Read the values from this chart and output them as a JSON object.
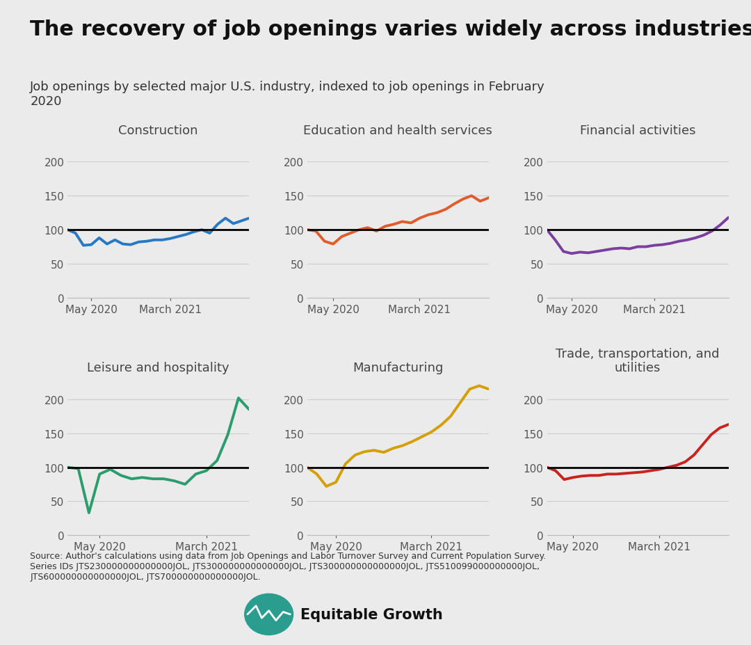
{
  "title": "The recovery of job openings varies widely across industries",
  "subtitle": "Job openings by selected major U.S. industry, indexed to job openings in February\n2020",
  "source": "Source: Author's calculations using data from Job Openings and Labor Turnover Survey and Current Population Survey.\nSeries IDs JTS230000000000000JOL, JTS300000000000000JOL, JTS300000000000000JOL, JTS510099000000000JOL,\nJTS600000000000000JOL, JTS700000000000000JOL.",
  "background_color": "#ebebeb",
  "panels": [
    {
      "title": "Construction",
      "color": "#2878c3",
      "ylim": [
        0,
        230
      ],
      "yticks": [
        0,
        50,
        100,
        150,
        200
      ],
      "data": [
        100,
        95,
        77,
        78,
        88,
        79,
        85,
        79,
        78,
        82,
        83,
        85,
        85,
        87,
        90,
        93,
        97,
        100,
        95,
        108,
        117,
        109,
        113,
        117
      ]
    },
    {
      "title": "Education and health services",
      "color": "#e05c2a",
      "ylim": [
        0,
        230
      ],
      "yticks": [
        0,
        50,
        100,
        150,
        200
      ],
      "data": [
        100,
        98,
        83,
        79,
        90,
        95,
        100,
        103,
        98,
        105,
        108,
        112,
        110,
        117,
        122,
        125,
        130,
        138,
        145,
        150,
        142,
        147
      ]
    },
    {
      "title": "Financial activities",
      "color": "#7b3fa0",
      "ylim": [
        0,
        230
      ],
      "yticks": [
        0,
        50,
        100,
        150,
        200
      ],
      "data": [
        100,
        85,
        68,
        65,
        67,
        66,
        68,
        70,
        72,
        73,
        72,
        75,
        75,
        77,
        78,
        80,
        83,
        85,
        88,
        92,
        98,
        107,
        118
      ]
    },
    {
      "title": "Leisure and hospitality",
      "color": "#2a9d6e",
      "ylim": [
        0,
        230
      ],
      "yticks": [
        0,
        50,
        100,
        150,
        200
      ],
      "data": [
        100,
        98,
        33,
        90,
        97,
        88,
        83,
        85,
        83,
        83,
        80,
        75,
        90,
        95,
        110,
        148,
        202,
        185
      ]
    },
    {
      "title": "Manufacturing",
      "color": "#d4a000",
      "ylim": [
        0,
        230
      ],
      "yticks": [
        0,
        50,
        100,
        150,
        200
      ],
      "data": [
        100,
        90,
        72,
        78,
        105,
        118,
        123,
        125,
        122,
        128,
        132,
        138,
        145,
        152,
        162,
        175,
        195,
        215,
        220,
        215
      ]
    },
    {
      "title": "Trade, transportation, and\nutilities",
      "color": "#c8231e",
      "ylim": [
        0,
        230
      ],
      "yticks": [
        0,
        50,
        100,
        150,
        200
      ],
      "data": [
        100,
        95,
        82,
        85,
        87,
        88,
        88,
        90,
        90,
        91,
        92,
        93,
        95,
        97,
        100,
        103,
        108,
        118,
        133,
        148,
        158,
        163
      ]
    }
  ],
  "xtick_labels": [
    "May 2020",
    "March 2021"
  ],
  "title_fontsize": 22,
  "subtitle_fontsize": 13,
  "panel_title_fontsize": 13,
  "tick_fontsize": 11,
  "source_fontsize": 9
}
